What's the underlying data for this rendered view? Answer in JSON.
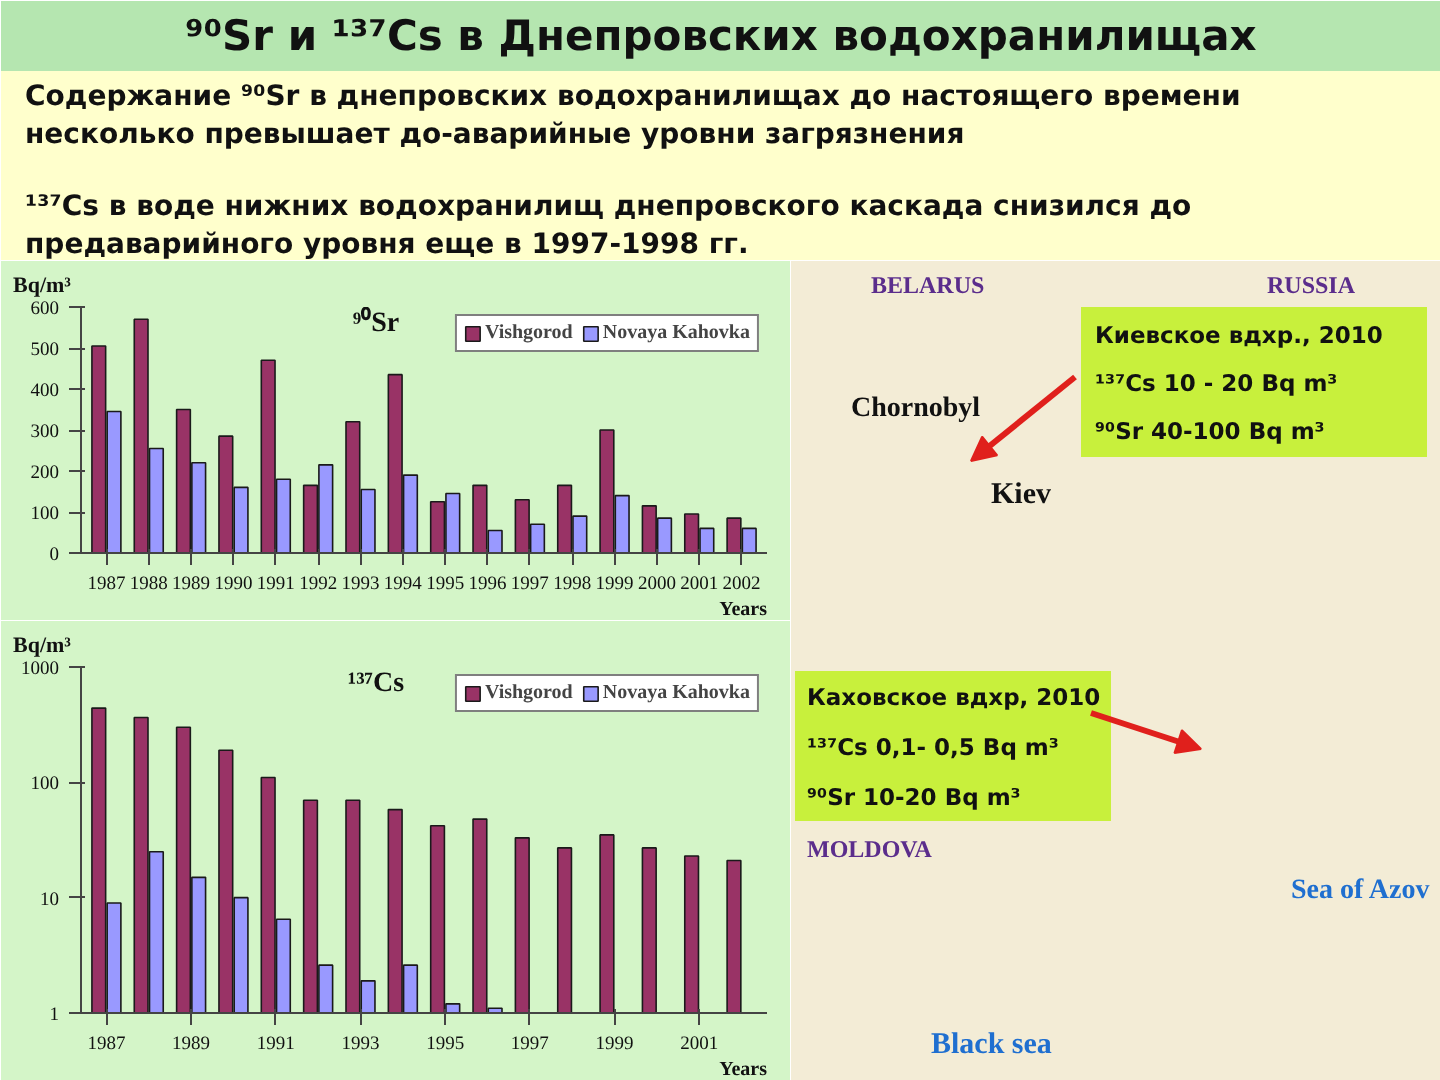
{
  "chart_data": [
    {
      "type": "other",
      "title": "⁹⁰Sr и ¹³⁷Cs в Днепровских водохранилищах",
      "annotations": [
        "Содержание ⁹⁰Sr в днепровских водохранилищах до настоящего времени несколько превышает до-аварийные уровни загрязнения",
        "¹³⁷Cs в воде нижних водохранилищ днепровского каскада снизился до предаварийного уровня еще в 1997-1998 гг."
      ]
    },
    {
      "type": "bar",
      "title": "⁹⁰Sr",
      "ylabel": "Bq/m³",
      "xlabel": "Years",
      "categories": [
        "1987",
        "1988",
        "1989",
        "1990",
        "1991",
        "1992",
        "1993",
        "1994",
        "1995",
        "1996",
        "1997",
        "1998",
        "1999",
        "2000",
        "2001",
        "2002"
      ],
      "series": [
        {
          "name": "Vishgorod",
          "color": "#993366",
          "values": [
            505,
            570,
            350,
            285,
            470,
            165,
            320,
            435,
            125,
            165,
            130,
            165,
            300,
            115,
            95,
            85
          ]
        },
        {
          "name": "Novaya Kahovka",
          "color": "#9999ff",
          "values": [
            345,
            255,
            220,
            160,
            180,
            215,
            155,
            190,
            145,
            55,
            70,
            90,
            140,
            85,
            60,
            60
          ]
        }
      ],
      "ylim": [
        0,
        600
      ],
      "yticks": [
        0,
        100,
        200,
        300,
        400,
        500,
        600
      ],
      "grid": false,
      "legend": "top right"
    },
    {
      "type": "bar",
      "title": "¹³⁷Cs",
      "ylabel": "Bq/m³",
      "xlabel": "Years",
      "categories": [
        "1987",
        null,
        "1989",
        null,
        "1991",
        null,
        "1993",
        null,
        "1995",
        null,
        "1997",
        null,
        "1999",
        null,
        "2001",
        null
      ],
      "series": [
        {
          "name": "Vishgorod",
          "color": "#993366",
          "values": [
            440,
            365,
            300,
            190,
            110,
            70,
            70,
            58,
            42,
            48,
            33,
            27,
            35,
            27,
            23,
            21
          ]
        },
        {
          "name": "Novaya Kahovka",
          "color": "#9999ff",
          "values": [
            9,
            25,
            15,
            10,
            6.5,
            2.6,
            1.9,
            2.6,
            1.2,
            1.1,
            null,
            null,
            null,
            null,
            null,
            null
          ]
        }
      ],
      "log": "y",
      "ylim": [
        1,
        1000
      ],
      "yticks": [
        1,
        10,
        100,
        1000
      ],
      "grid": false,
      "legend": "top right"
    },
    {
      "type": "other",
      "annotations": [
        "BELARUS",
        "RUSSIA",
        "Chornobyl",
        "Kiev",
        "Киевское вдхр., 2010",
        "¹³⁷Cs 10 - 20 Bq m³",
        "⁹⁰Sr 40-100 Bq m³",
        "Каховское вдхр, 2010",
        "¹³⁷Cs 0,1- 0,5 Bq m³",
        "⁹⁰Sr 10-20 Bq m³",
        "MOLDOVA",
        "Sea of Azov",
        "Black sea"
      ]
    }
  ]
}
